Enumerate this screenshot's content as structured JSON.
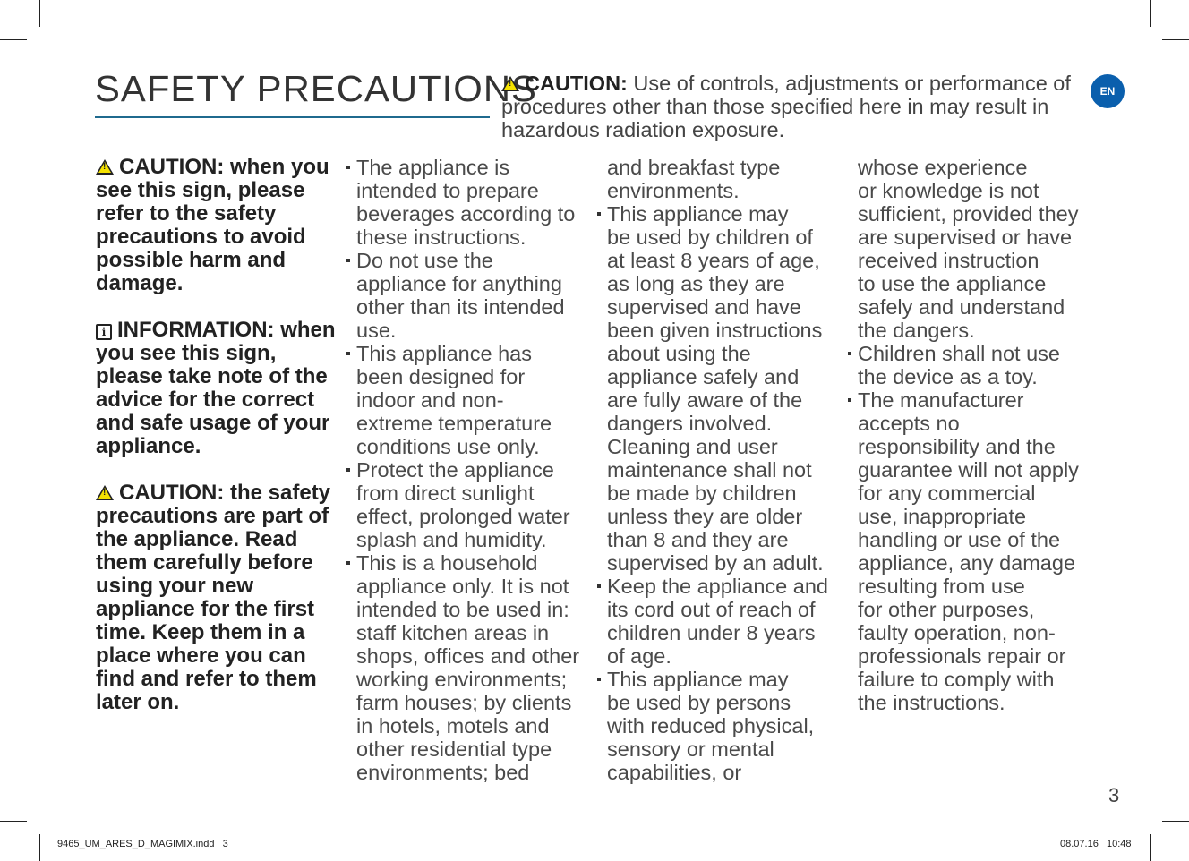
{
  "title": "SAFETY PRECAUTIONS",
  "language_badge": "EN",
  "top_caution": {
    "label": "CAUTION:",
    "text": " Use of controls, adjustments or performance of procedures other than those specified here in may result in hazardous radiation exposure."
  },
  "left": {
    "caution1": "CAUTION: when you see this sign, please refer to the safety precautions to avoid possible harm and damage.",
    "info": "INFORMATION: when you see this sign, please take note of the advice for the correct and safe usage of your appliance.",
    "caution2": "CAUTION: the safety precautions are part of the appliance. Read them carefully before using your new appliance for the first time. Keep them in a place where you can find and refer to them later on."
  },
  "columns": [
    [
      {
        "bullet": true,
        "lines": [
          "The appliance is",
          "intended to prepare",
          "beverages according to",
          "these instructions."
        ]
      },
      {
        "bullet": true,
        "lines": [
          "Do not use the",
          "appliance for anything",
          "other than its intended",
          "use."
        ]
      },
      {
        "bullet": true,
        "lines": [
          "This appliance has",
          "been designed for",
          "indoor and non-",
          "extreme temperature",
          "conditions use only."
        ]
      },
      {
        "bullet": true,
        "lines": [
          "Protect the appliance",
          "from direct sunlight",
          "effect, prolonged water",
          "splash and humidity."
        ]
      },
      {
        "bullet": true,
        "lines": [
          "This is a household",
          "appliance only. It is not",
          "intended to be used in:",
          "staff kitchen areas in",
          "shops, offices and other",
          "working environments;",
          "farm houses; by clients",
          "in hotels, motels and",
          "other residential type",
          "environments; bed"
        ]
      }
    ],
    [
      {
        "bullet": false,
        "lines": [
          "and breakfast type",
          "environments."
        ]
      },
      {
        "bullet": true,
        "lines": [
          "This appliance may",
          "be used by children of",
          "at least 8 years of age,",
          "as long as they are",
          "supervised and have",
          "been given instructions",
          "about using the",
          "appliance safely and",
          "are fully aware of the",
          "dangers involved.",
          "Cleaning and user",
          "maintenance shall not",
          "be made by children",
          "unless they are older",
          "than 8 and they are",
          "supervised by an adult."
        ]
      },
      {
        "bullet": true,
        "lines": [
          "Keep the appliance and",
          "its cord out of reach of",
          "children under 8 years",
          "of age."
        ]
      },
      {
        "bullet": true,
        "lines": [
          "This appliance may",
          "be used by persons",
          "with reduced physical,",
          "sensory or mental",
          "capabilities, or"
        ]
      }
    ],
    [
      {
        "bullet": false,
        "lines": [
          "whose experience",
          "or knowledge is not",
          "sufficient, provided they",
          "are supervised or have",
          "received instruction",
          "to use the appliance",
          "safely and understand",
          "the dangers."
        ]
      },
      {
        "bullet": true,
        "lines": [
          "Children shall not use",
          "the device as a toy."
        ]
      },
      {
        "bullet": true,
        "lines": [
          "The manufacturer",
          "accepts no",
          "responsibility and the",
          "guarantee will not apply",
          "for any commercial",
          "use, inappropriate",
          "handling or use of the",
          "appliance, any damage",
          "resulting from use",
          "for other purposes,",
          "faulty operation, non-",
          "professionals repair or",
          "failure to comply with",
          "the instructions."
        ]
      }
    ]
  ],
  "page_number": "3",
  "slug": {
    "file": "9465_UM_ARES_D_MAGIMIX.indd   3",
    "datetime": "08.07.16   10:48"
  }
}
